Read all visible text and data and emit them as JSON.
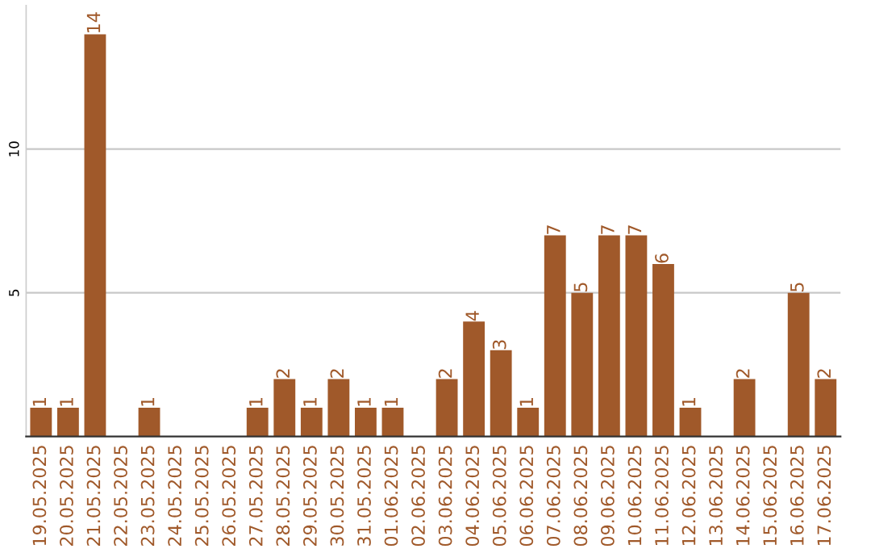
{
  "chart_data": {
    "type": "bar",
    "categories": [
      "19.05.2025",
      "20.05.2025",
      "21.05.2025",
      "22.05.2025",
      "23.05.2025",
      "24.05.2025",
      "25.05.2025",
      "26.05.2025",
      "27.05.2025",
      "28.05.2025",
      "29.05.2025",
      "30.05.2025",
      "31.05.2025",
      "01.06.2025",
      "02.06.2025",
      "03.06.2025",
      "04.06.2025",
      "05.06.2025",
      "06.06.2025",
      "07.06.2025",
      "08.06.2025",
      "09.06.2025",
      "10.06.2025",
      "11.06.2025",
      "12.06.2025",
      "13.06.2025",
      "14.06.2025",
      "15.06.2025",
      "16.06.2025",
      "17.06.2025"
    ],
    "values": [
      1,
      1,
      14,
      0,
      1,
      0,
      0,
      0,
      1,
      2,
      1,
      2,
      1,
      1,
      0,
      2,
      4,
      3,
      1,
      7,
      5,
      7,
      7,
      6,
      1,
      0,
      2,
      0,
      5,
      2
    ],
    "value_labels": [
      "1",
      "1",
      "14",
      null,
      "1",
      null,
      null,
      null,
      "1",
      "2",
      "1",
      "2",
      "1",
      "1",
      null,
      "2",
      "4",
      "3",
      "1",
      "7",
      "5",
      "7",
      "7",
      "6",
      "1",
      null,
      "2",
      null,
      "5",
      "2"
    ],
    "color": "#a0592a",
    "ylim": [
      0,
      15
    ],
    "yticks": [
      5,
      10
    ],
    "grid": "y",
    "legend": false
  }
}
